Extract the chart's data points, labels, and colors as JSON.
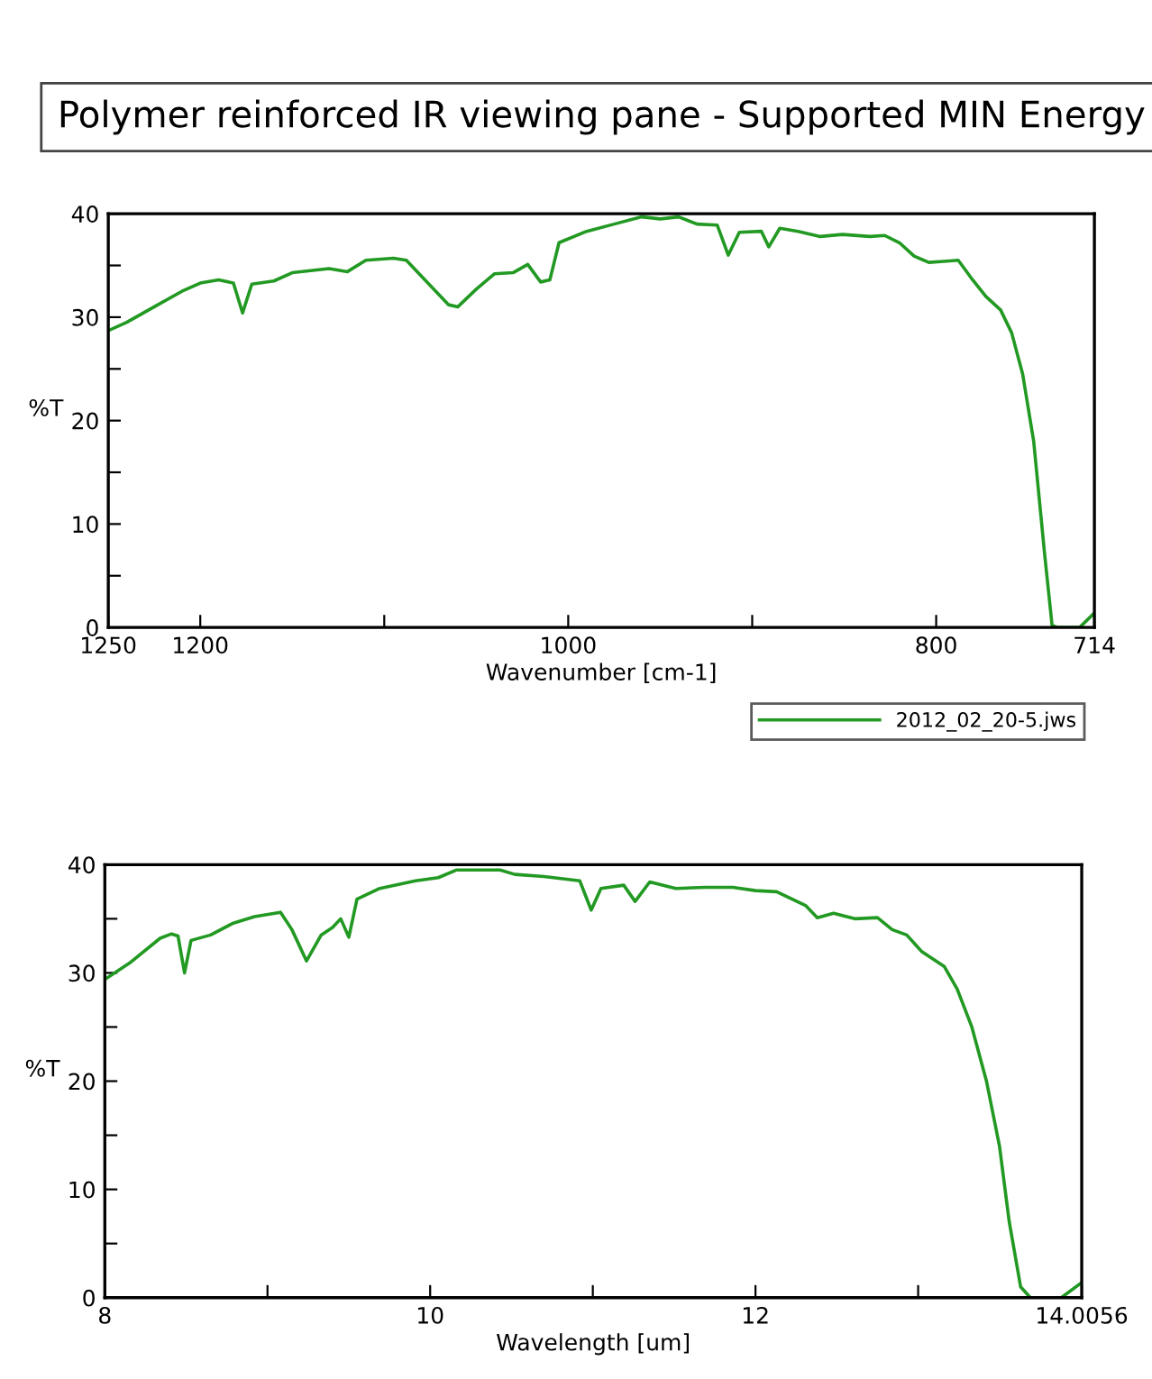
{
  "chart_data": [
    {
      "type": "line",
      "title": "Polymer reinforced IR viewing pane - Supported MIN Energy",
      "xlabel": "Wavenumber [cm-1]",
      "ylabel": "%T",
      "legend": "bottom right",
      "grid": false,
      "marker": "none",
      "line_style": "solid",
      "xlim": [
        1250,
        714
      ],
      "ylim": [
        0,
        40
      ],
      "xticks": [
        1250,
        1200,
        {
          "value": 1100,
          "label": null
        },
        1000,
        {
          "value": 900,
          "label": null
        },
        800,
        714
      ],
      "yticks": [
        0,
        {
          "value": 5,
          "label": null
        },
        10,
        {
          "value": 15,
          "label": null
        },
        20,
        {
          "value": 25,
          "label": null
        },
        30,
        {
          "value": 35,
          "label": null
        },
        40
      ],
      "series": [
        {
          "name": "2012_02_20-5.jws",
          "color": "#229922",
          "x": [
            1250,
            1240,
            1225,
            1210,
            1200,
            1190,
            1182,
            1177,
            1172,
            1160,
            1150,
            1130,
            1120,
            1110,
            1095,
            1088,
            1080,
            1065,
            1060,
            1050,
            1040,
            1030,
            1022,
            1015,
            1010,
            1005,
            990,
            975,
            960,
            950,
            940,
            930,
            919,
            913,
            907,
            895,
            891,
            885,
            875,
            863,
            851,
            836,
            828,
            820,
            812,
            804,
            796,
            788,
            781,
            773,
            765,
            759,
            753,
            747,
            741,
            737,
            734,
            722,
            714
          ],
          "values": [
            28.7,
            29.5,
            31,
            32.5,
            33.3,
            33.6,
            33.3,
            30.4,
            33.2,
            33.5,
            34.3,
            34.7,
            34.4,
            35.5,
            35.7,
            35.5,
            34,
            31.2,
            31,
            32.7,
            34.2,
            34.3,
            35.1,
            33.4,
            33.6,
            37.2,
            38.3,
            39,
            39.7,
            39.5,
            39.7,
            39,
            38.9,
            36,
            38.2,
            38.3,
            36.8,
            38.6,
            38.3,
            37.8,
            38,
            37.8,
            37.9,
            37.2,
            35.9,
            35.3,
            35.4,
            35.5,
            33.8,
            32,
            30.7,
            28.5,
            24.5,
            18,
            7,
            0.2,
            0,
            0,
            1.4
          ]
        }
      ]
    },
    {
      "type": "line",
      "xlabel": "Wavelength [um]",
      "ylabel": "%T",
      "grid": false,
      "marker": "none",
      "line_style": "solid",
      "xlim": [
        8,
        14.0056
      ],
      "ylim": [
        0,
        40
      ],
      "xticks": [
        8,
        {
          "value": 9,
          "label": null
        },
        10,
        {
          "value": 11,
          "label": null
        },
        12,
        {
          "value": 13,
          "label": null
        },
        14.0056
      ],
      "yticks": [
        0,
        {
          "value": 5,
          "label": null
        },
        10,
        {
          "value": 15,
          "label": null
        },
        20,
        {
          "value": 25,
          "label": null
        },
        30,
        {
          "value": 35,
          "label": null
        },
        40
      ],
      "series": [
        {
          "color": "#229922",
          "x": [
            8.0,
            8.16,
            8.34,
            8.41,
            8.45,
            8.49,
            8.53,
            8.65,
            8.79,
            8.92,
            9.08,
            9.15,
            9.24,
            9.33,
            9.4,
            9.45,
            9.5,
            9.55,
            9.69,
            9.91,
            10.05,
            10.16,
            10.43,
            10.52,
            10.7,
            10.92,
            10.99,
            11.05,
            11.19,
            11.26,
            11.35,
            11.51,
            11.69,
            11.86,
            12.0,
            12.13,
            12.31,
            12.38,
            12.48,
            12.61,
            12.75,
            12.84,
            12.93,
            13.02,
            13.16,
            13.24,
            13.33,
            13.42,
            13.5,
            13.56,
            13.63,
            13.69,
            13.88,
            14.0056
          ],
          "values": [
            29.4,
            31,
            33.2,
            33.6,
            33.4,
            30,
            33,
            33.5,
            34.6,
            35.2,
            35.6,
            34,
            31.1,
            33.5,
            34.2,
            35,
            33.3,
            36.8,
            37.8,
            38.5,
            38.8,
            39.5,
            39.5,
            39.1,
            38.9,
            38.5,
            35.8,
            37.8,
            38.1,
            36.6,
            38.4,
            37.8,
            37.9,
            37.9,
            37.6,
            37.5,
            36.2,
            35.1,
            35.5,
            35,
            35.1,
            34,
            33.5,
            32,
            30.6,
            28.5,
            25,
            20,
            14,
            7,
            1,
            0,
            0,
            1.4
          ]
        }
      ]
    }
  ]
}
